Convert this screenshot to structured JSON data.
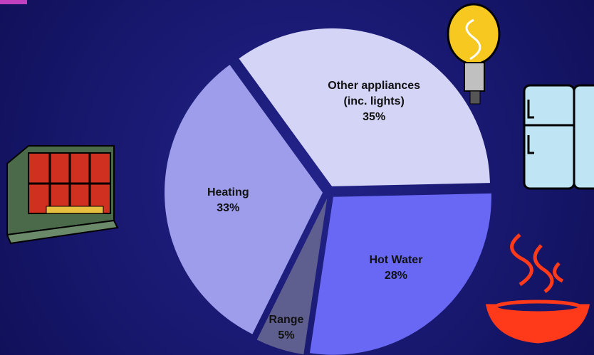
{
  "chart_data": {
    "type": "pie",
    "categories": [
      "Other appliances (inc. lights)",
      "Hot Water",
      "Range",
      "Heating"
    ],
    "values": [
      35,
      28,
      5,
      33
    ],
    "value_labels": [
      "35%",
      "28%",
      "5%",
      "33%"
    ],
    "colors": [
      "#d4d4f7",
      "#6868f5",
      "#5f5f8f",
      "#9d9deb"
    ]
  }
}
